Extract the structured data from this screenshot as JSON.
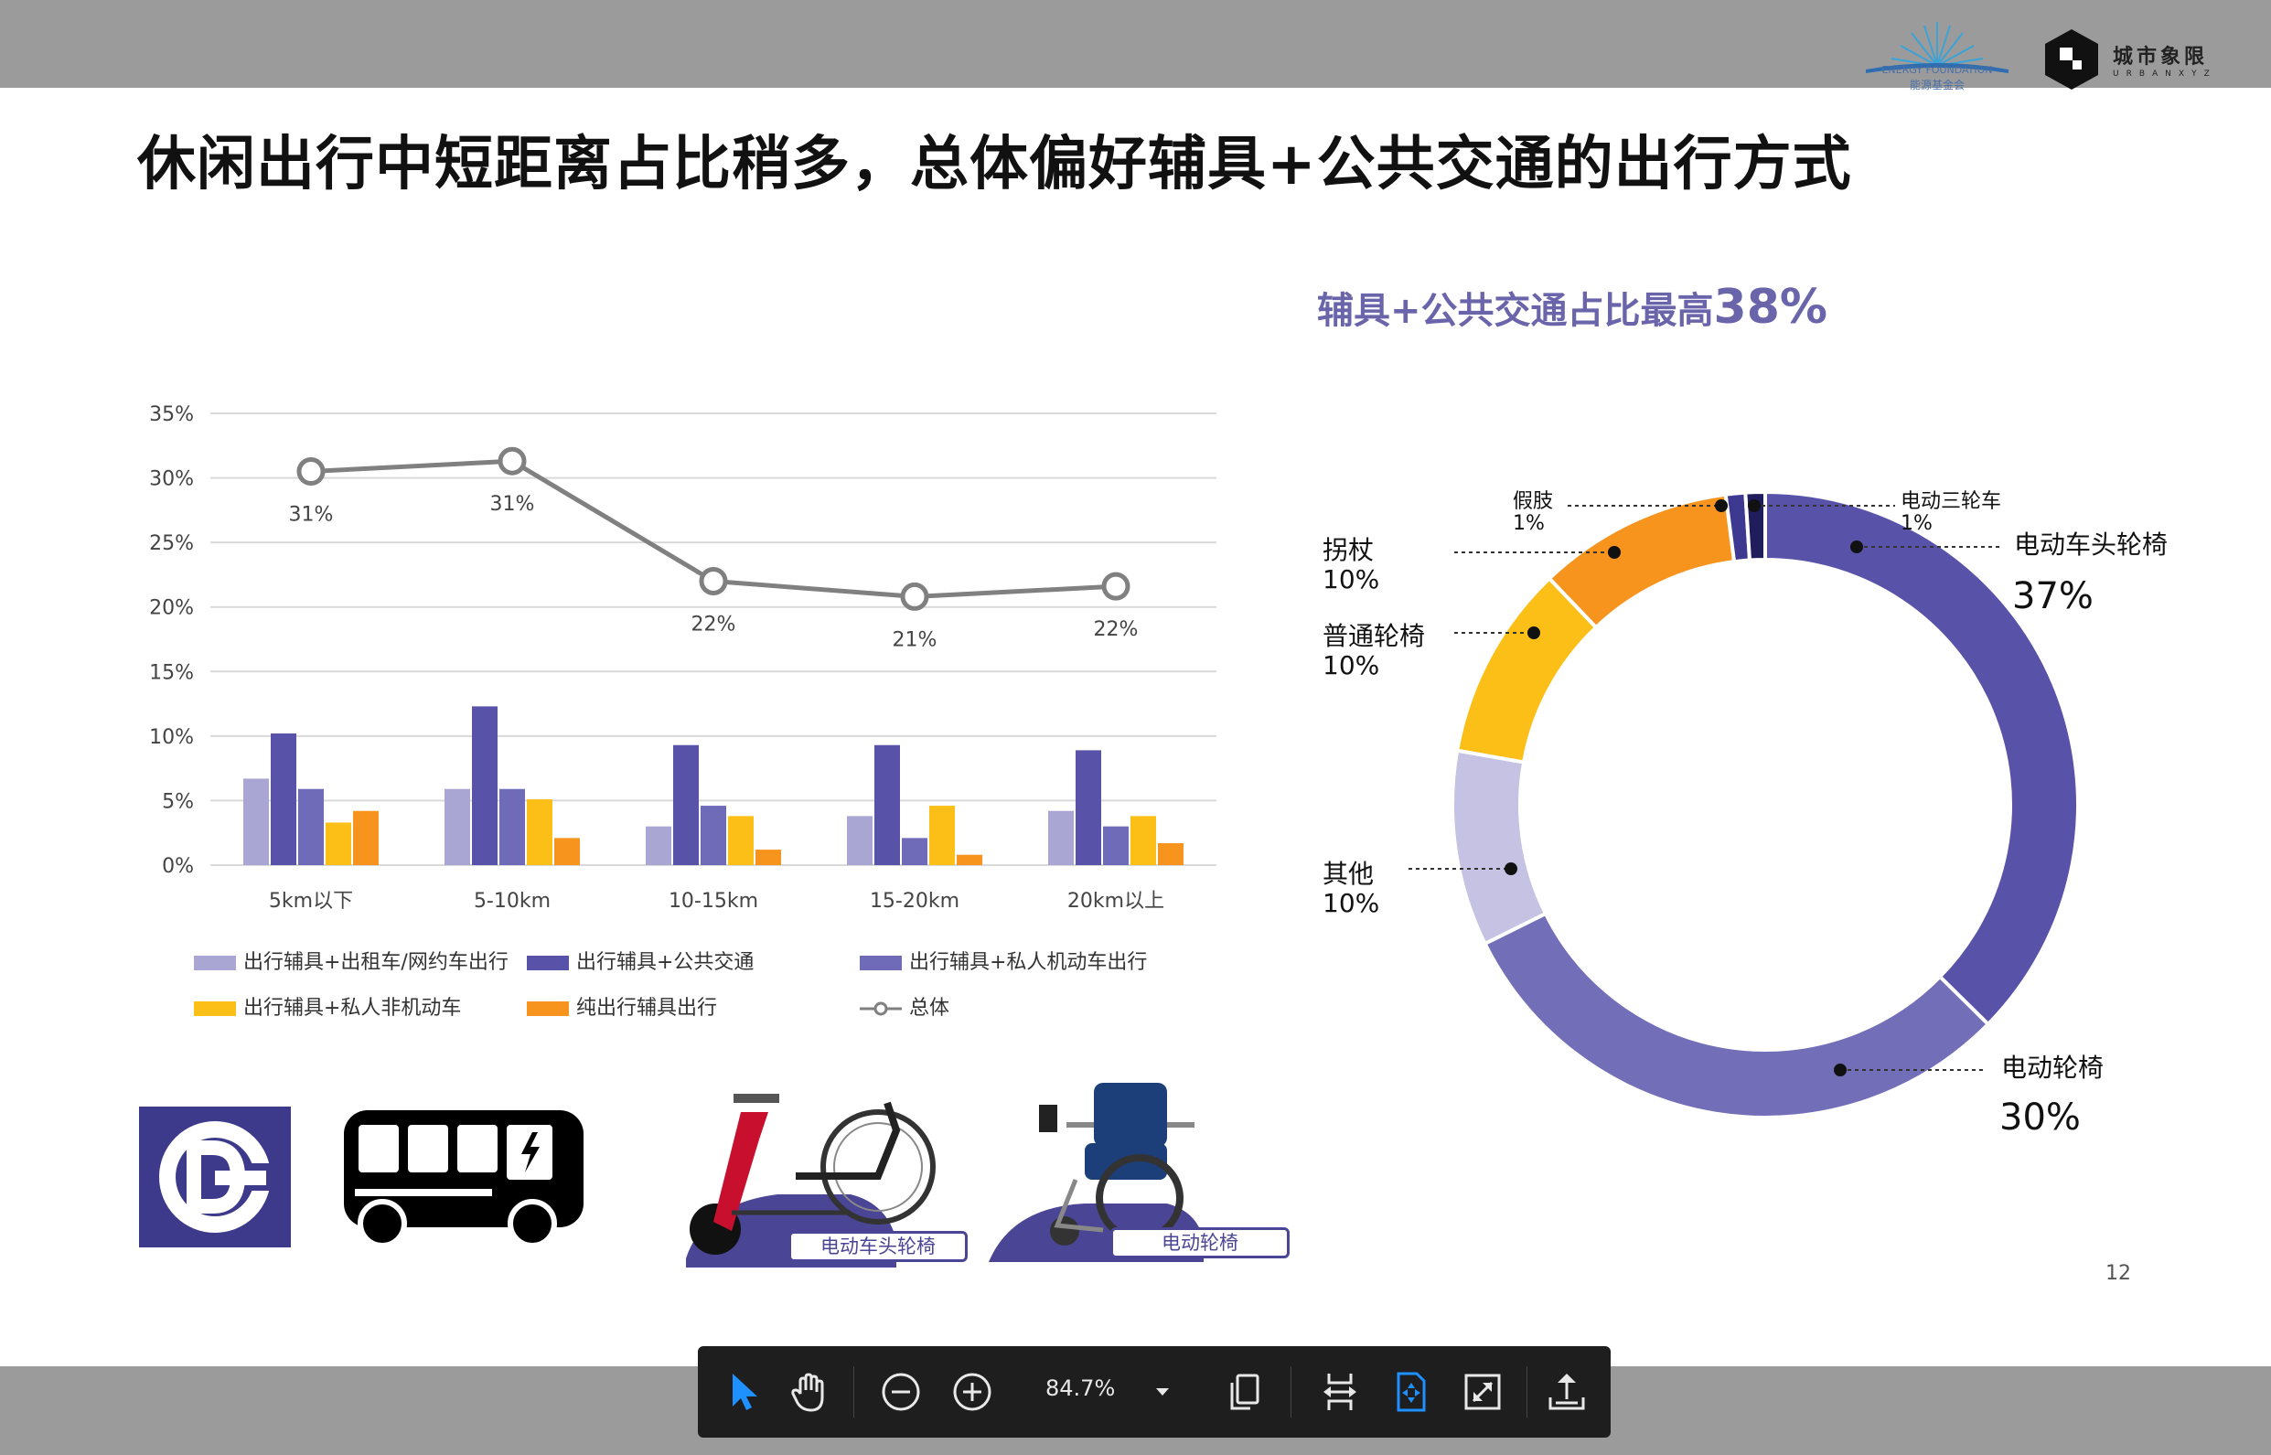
{
  "title": "休闲出行中短距离占比稍多，总体偏好辅具+公共交通的出行方式",
  "logos": {
    "energy_foundation_en": "ENERGY FOUNDATION",
    "energy_foundation_cn": "能源基金会",
    "urbanxyz_cn": "城市象限",
    "urbanxyz_en": "URBANXYZ"
  },
  "page_number": "12",
  "pie_heading": {
    "text": "辅具+公共交通占比最高",
    "highlight": "38%"
  },
  "images": {
    "wheelchair_head_label": "电动车头轮椅",
    "electric_wheelchair_label": "电动轮椅"
  },
  "toolbar": {
    "zoom": "84.7%",
    "accent": "#1e90ff",
    "icons": [
      "select-arrow-icon",
      "hand-icon",
      "zoom-out-icon",
      "zoom-in-icon",
      "zoom-dropdown-icon",
      "copy-pages-icon",
      "fit-width-icon",
      "fit-page-icon",
      "fullscreen-icon",
      "share-upload-icon"
    ]
  },
  "chart_data": [
    {
      "type": "bar",
      "categories": [
        "5km以下",
        "5-10km",
        "10-15km",
        "15-20km",
        "20km以上"
      ],
      "ylim": [
        0,
        35
      ],
      "yticks": [
        "0%",
        "5%",
        "10%",
        "15%",
        "20%",
        "25%",
        "30%",
        "35%"
      ],
      "series": [
        {
          "name": "出行辅具+出租车/网约车出行",
          "color": "#a9a6d4",
          "values": [
            6.7,
            5.9,
            3.0,
            3.8,
            4.2
          ]
        },
        {
          "name": "出行辅具+公共交通",
          "color": "#5853a8",
          "values": [
            10.2,
            12.3,
            9.3,
            9.3,
            8.9
          ]
        },
        {
          "name": "出行辅具+私人机动车出行",
          "color": "#6f6bb8",
          "values": [
            5.9,
            5.9,
            4.6,
            2.1,
            3.0
          ]
        },
        {
          "name": "出行辅具+私人非机动车",
          "color": "#fbbf18",
          "values": [
            3.3,
            5.1,
            3.8,
            4.6,
            3.8
          ]
        },
        {
          "name": "纯出行辅具出行",
          "color": "#f7941e",
          "values": [
            4.2,
            2.1,
            1.2,
            0.8,
            1.7
          ]
        },
        {
          "name": "总体",
          "type": "line",
          "color": "#808080",
          "values": [
            30.5,
            31.3,
            22.0,
            20.8,
            21.6
          ],
          "labels": [
            "31%",
            "31%",
            "22%",
            "21%",
            "22%"
          ]
        }
      ]
    },
    {
      "type": "pie",
      "slices": [
        {
          "name": "电动车头轮椅",
          "value": 37,
          "label": "37%",
          "color": "#5853a8"
        },
        {
          "name": "电动轮椅",
          "value": 30,
          "label": "30%",
          "color": "#726eb8"
        },
        {
          "name": "其他",
          "value": 10,
          "label": "10%",
          "color": "#c5c2e4"
        },
        {
          "name": "普通轮椅",
          "value": 10,
          "label": "10%",
          "color": "#fbbf18"
        },
        {
          "name": "拐杖",
          "value": 10,
          "label": "10%",
          "color": "#f7941e"
        },
        {
          "name": "假肢",
          "value": 1,
          "label": "1%",
          "color": "#3d3990"
        },
        {
          "name": "电动三轮车",
          "value": 1,
          "label": "1%",
          "color": "#1f1d5c"
        }
      ]
    }
  ]
}
